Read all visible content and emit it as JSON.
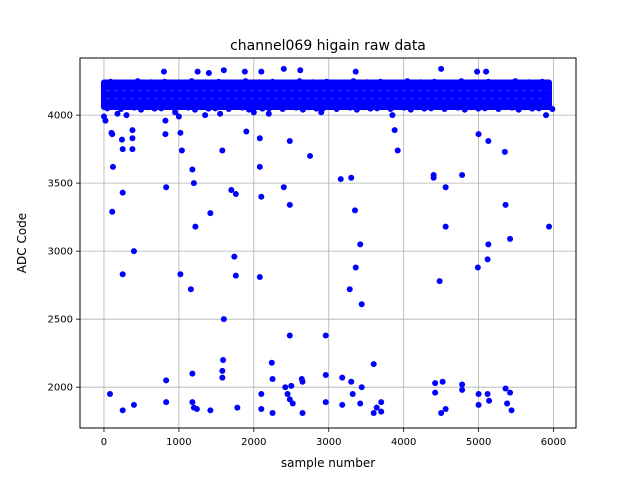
{
  "chart_data": {
    "type": "scatter",
    "title": "channel069 higain raw data",
    "xlabel": "sample number",
    "ylabel": "ADC Code",
    "xlim": [
      -320,
      6300
    ],
    "ylim": [
      1700,
      4420
    ],
    "x_ticks": [
      0,
      1000,
      2000,
      3000,
      4000,
      5000,
      6000
    ],
    "x_tick_labels": [
      "0",
      "1000",
      "2000",
      "3000",
      "4000",
      "5000",
      "6000"
    ],
    "y_ticks": [
      2000,
      2500,
      3000,
      3500,
      4000
    ],
    "y_tick_labels": [
      "2000",
      "2500",
      "3000",
      "3500",
      "4000"
    ],
    "grid": true,
    "legend": "none",
    "marker_color": "#0000ff",
    "band": {
      "x_range": [
        0,
        5940
      ],
      "y_range": [
        4060,
        4240
      ],
      "description_values": "dense baseline of samples between ~4060 and ~4240"
    },
    "points": [
      [
        0,
        3990
      ],
      [
        20,
        3960
      ],
      [
        100,
        3870
      ],
      [
        110,
        3860
      ],
      [
        120,
        3620
      ],
      [
        110,
        3290
      ],
      [
        180,
        4010
      ],
      [
        240,
        3820
      ],
      [
        250,
        3750
      ],
      [
        250,
        3430
      ],
      [
        250,
        2830
      ],
      [
        300,
        4000
      ],
      [
        380,
        3890
      ],
      [
        380,
        3830
      ],
      [
        380,
        3750
      ],
      [
        400,
        3000
      ],
      [
        80,
        1950
      ],
      [
        250,
        1830
      ],
      [
        400,
        1870
      ],
      [
        800,
        4320
      ],
      [
        820,
        3960
      ],
      [
        820,
        3860
      ],
      [
        830,
        3470
      ],
      [
        830,
        2050
      ],
      [
        830,
        1890
      ],
      [
        950,
        4020
      ],
      [
        1000,
        3990
      ],
      [
        1020,
        3870
      ],
      [
        1040,
        3740
      ],
      [
        1020,
        2830
      ],
      [
        1180,
        3600
      ],
      [
        1200,
        3500
      ],
      [
        1220,
        3180
      ],
      [
        1160,
        2720
      ],
      [
        1180,
        2100
      ],
      [
        1180,
        1890
      ],
      [
        1200,
        1850
      ],
      [
        1240,
        1840
      ],
      [
        1250,
        4320
      ],
      [
        1350,
        4000
      ],
      [
        1400,
        4310
      ],
      [
        1420,
        3280
      ],
      [
        1420,
        1830
      ],
      [
        1550,
        4010
      ],
      [
        1600,
        4330
      ],
      [
        1580,
        3740
      ],
      [
        1600,
        2500
      ],
      [
        1590,
        2200
      ],
      [
        1580,
        2120
      ],
      [
        1580,
        2070
      ],
      [
        1700,
        3450
      ],
      [
        1740,
        2960
      ],
      [
        1760,
        3420
      ],
      [
        1760,
        2820
      ],
      [
        1780,
        1850
      ],
      [
        1880,
        4320
      ],
      [
        1900,
        3880
      ],
      [
        2000,
        4020
      ],
      [
        2100,
        4320
      ],
      [
        2080,
        3830
      ],
      [
        2080,
        3620
      ],
      [
        2100,
        3400
      ],
      [
        2080,
        2810
      ],
      [
        2100,
        1950
      ],
      [
        2100,
        1840
      ],
      [
        2200,
        4010
      ],
      [
        2240,
        2180
      ],
      [
        2250,
        2060
      ],
      [
        2250,
        1810
      ],
      [
        2400,
        4340
      ],
      [
        2400,
        3470
      ],
      [
        2420,
        2000
      ],
      [
        2450,
        1950
      ],
      [
        2480,
        3810
      ],
      [
        2480,
        3340
      ],
      [
        2480,
        2380
      ],
      [
        2500,
        2010
      ],
      [
        2480,
        1910
      ],
      [
        2520,
        1880
      ],
      [
        2620,
        4330
      ],
      [
        2640,
        2060
      ],
      [
        2650,
        2040
      ],
      [
        2650,
        1810
      ],
      [
        2750,
        3700
      ],
      [
        2900,
        4020
      ],
      [
        2960,
        2380
      ],
      [
        2960,
        2090
      ],
      [
        2960,
        1890
      ],
      [
        3160,
        3530
      ],
      [
        3180,
        2070
      ],
      [
        3180,
        1870
      ],
      [
        3300,
        3540
      ],
      [
        3280,
        2720
      ],
      [
        3300,
        2040
      ],
      [
        3320,
        1950
      ],
      [
        3360,
        4320
      ],
      [
        3350,
        3300
      ],
      [
        3360,
        2880
      ],
      [
        3420,
        3050
      ],
      [
        3420,
        1880
      ],
      [
        3440,
        2610
      ],
      [
        3440,
        2000
      ],
      [
        3600,
        2170
      ],
      [
        3600,
        1810
      ],
      [
        3640,
        1850
      ],
      [
        3700,
        1890
      ],
      [
        3700,
        1820
      ],
      [
        3850,
        4000
      ],
      [
        3880,
        3890
      ],
      [
        3920,
        3740
      ],
      [
        4400,
        3540
      ],
      [
        4400,
        3560
      ],
      [
        4420,
        2030
      ],
      [
        4420,
        1960
      ],
      [
        4480,
        2780
      ],
      [
        4500,
        4340
      ],
      [
        4500,
        1810
      ],
      [
        4520,
        2040
      ],
      [
        4560,
        3470
      ],
      [
        4560,
        3180
      ],
      [
        4560,
        1840
      ],
      [
        4780,
        3560
      ],
      [
        4780,
        2020
      ],
      [
        4780,
        1980
      ],
      [
        4980,
        4320
      ],
      [
        5000,
        3860
      ],
      [
        4990,
        2880
      ],
      [
        5000,
        1950
      ],
      [
        5000,
        1870
      ],
      [
        5100,
        4320
      ],
      [
        5130,
        3810
      ],
      [
        5130,
        3050
      ],
      [
        5120,
        2940
      ],
      [
        5120,
        1950
      ],
      [
        5140,
        1900
      ],
      [
        5350,
        3730
      ],
      [
        5360,
        3340
      ],
      [
        5360,
        1990
      ],
      [
        5380,
        1880
      ],
      [
        5420,
        3090
      ],
      [
        5420,
        1960
      ],
      [
        5440,
        1830
      ],
      [
        5900,
        4000
      ],
      [
        5940,
        3180
      ]
    ]
  }
}
